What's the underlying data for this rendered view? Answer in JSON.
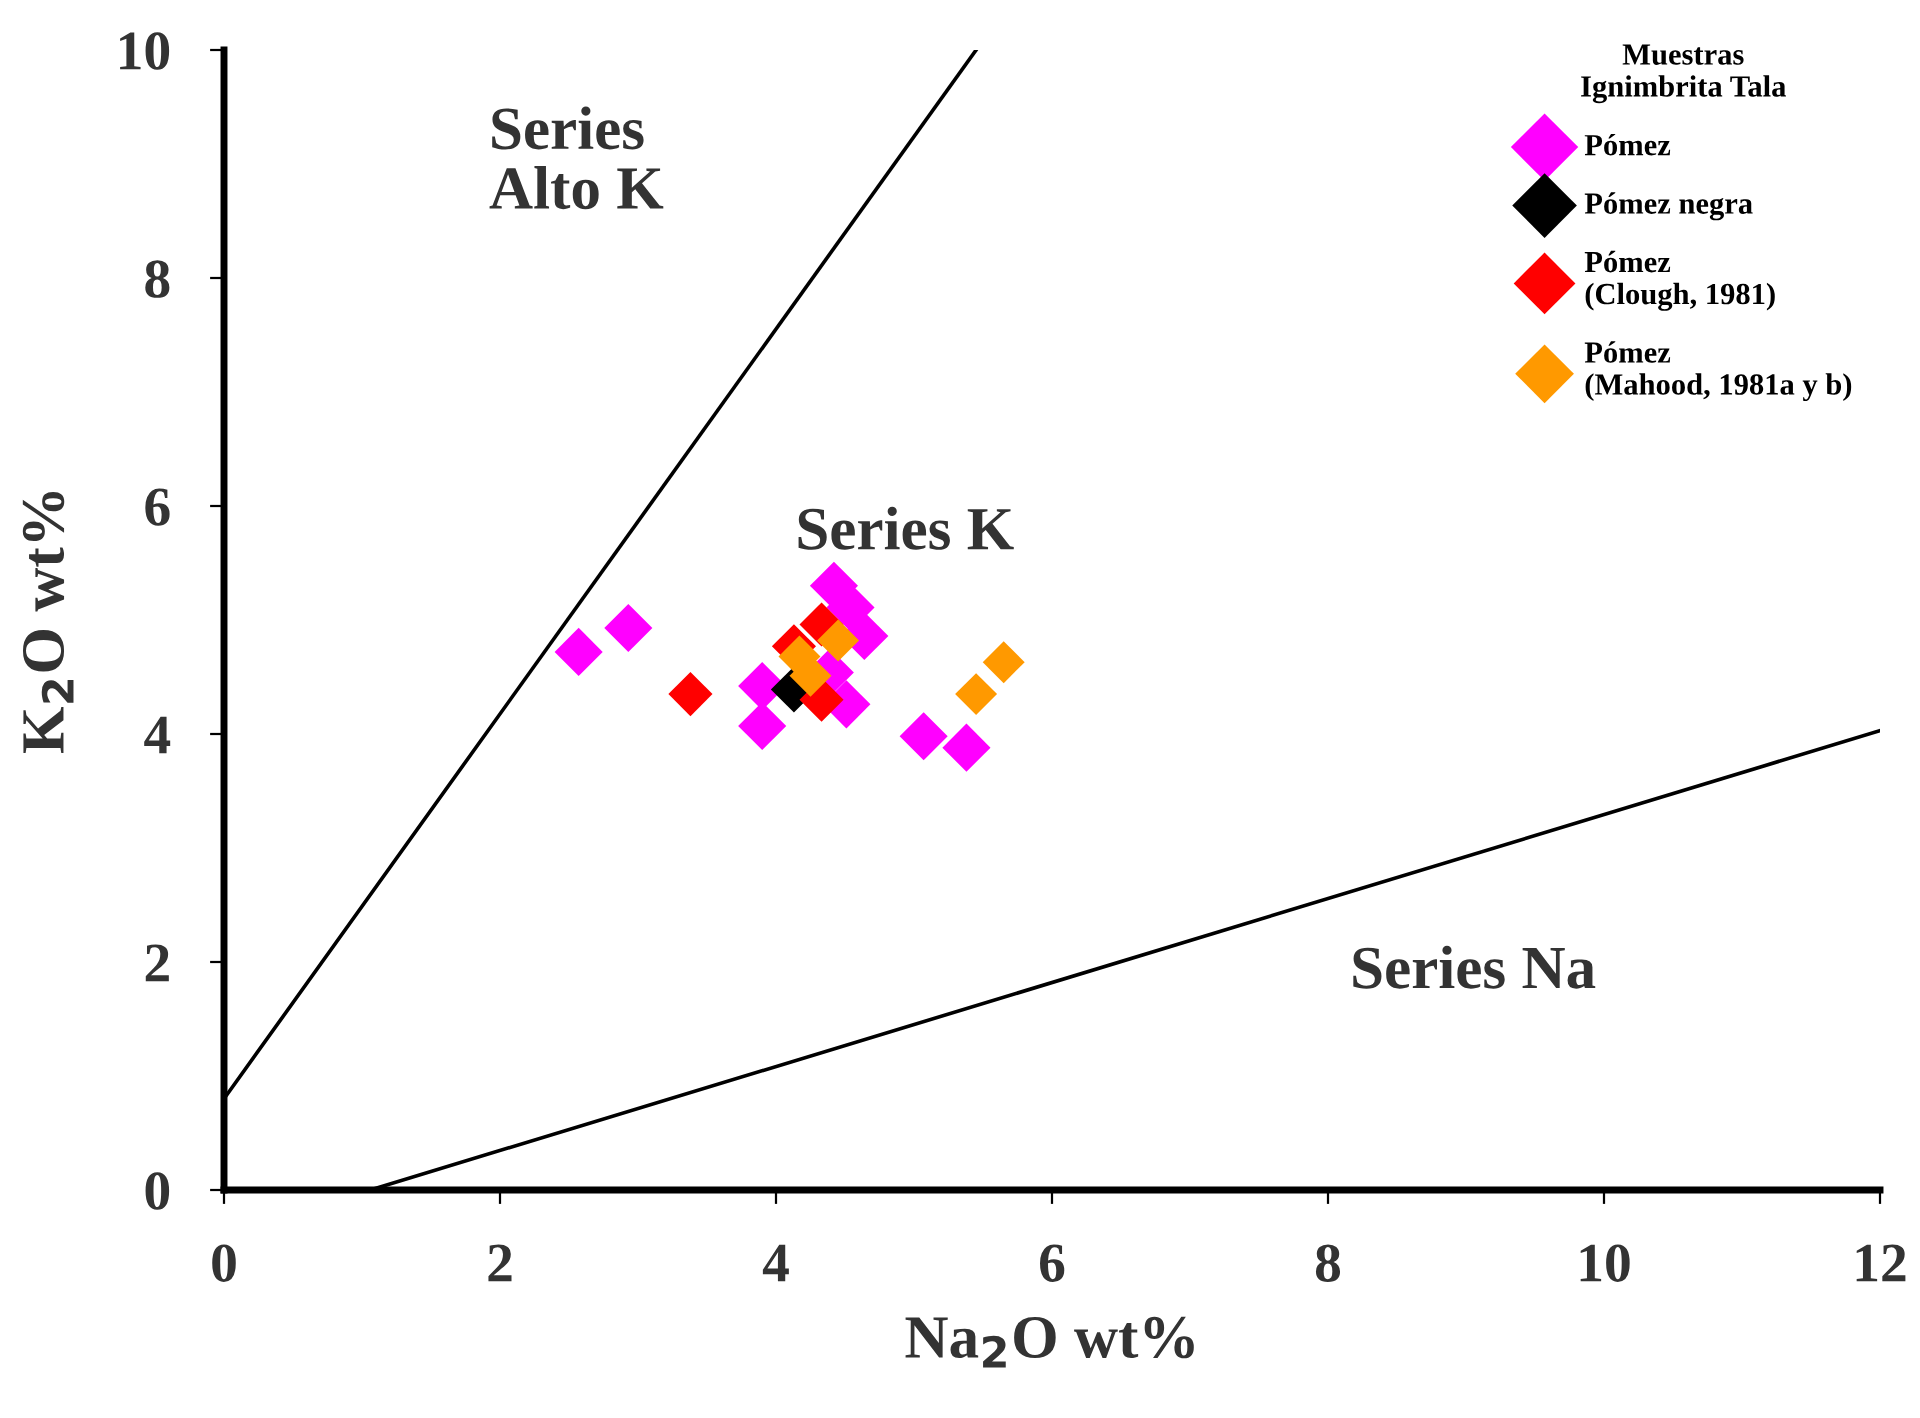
{
  "chart_data": {
    "type": "scatter",
    "xlabel": "Na$_{2}$O wt%",
    "ylabel": "K$_{2}$O wt%",
    "legend_title": "Muestras\nIgnimbrita Tala",
    "xlim": [
      0,
      12
    ],
    "ylim": [
      0,
      10
    ],
    "xticks": [
      0,
      2,
      4,
      6,
      8,
      10,
      12
    ],
    "yticks": [
      0,
      2,
      4,
      6,
      8,
      10
    ],
    "marker": "none",
    "legend": "top right",
    "grid": false,
    "annotations": [
      "Series\nAlto K",
      "Series K",
      "Series Na"
    ],
    "series": [
      {
        "name": "Pómez",
        "color": "#ff00ff",
        "marker": "diamond",
        "x": [
          2.57,
          2.93,
          3.9,
          3.9,
          4.42,
          4.54,
          4.64,
          4.39,
          4.51,
          5.07,
          5.38
        ],
        "values": [
          4.72,
          4.93,
          4.42,
          4.07,
          5.3,
          5.11,
          4.86,
          4.54,
          4.26,
          3.98,
          3.88
        ]
      },
      {
        "name": "Pómez negra",
        "color": "#000000",
        "marker": "diamond",
        "x": [
          4.13
        ],
        "values": [
          4.39
        ]
      },
      {
        "name": "Pómez\n(Clough, 1981)",
        "color": "#ff0000",
        "marker": "diamond",
        "x": [
          3.38,
          4.33,
          4.13,
          4.33
        ],
        "values": [
          4.35,
          4.96,
          4.77,
          4.3
        ]
      },
      {
        "name": "Pómez\n(Mahood, 1981a y b)",
        "color": "#ff9900",
        "marker": "diamond",
        "x": [
          4.45,
          4.17,
          4.25,
          5.45,
          5.65
        ],
        "values": [
          4.82,
          4.68,
          4.51,
          4.35,
          4.63
        ]
      },
      {
        "type": "line",
        "color": "#000000",
        "x": [
          0,
          5.45
        ],
        "values": [
          0.8,
          10
        ]
      },
      {
        "type": "line",
        "color": "#000000",
        "x": [
          1.06,
          12
        ],
        "values": [
          0,
          4.03
        ]
      }
    ]
  }
}
